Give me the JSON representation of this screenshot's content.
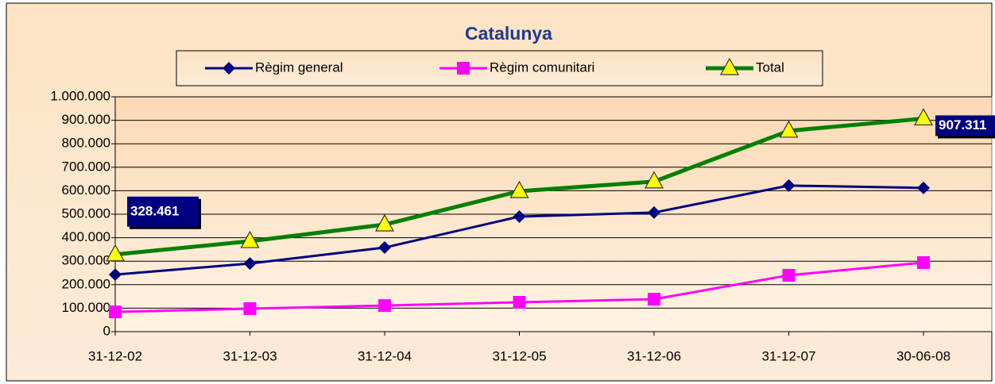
{
  "chart_data": {
    "type": "line",
    "title": "Catalunya",
    "categories": [
      "31-12-02",
      "31-12-03",
      "31-12-04",
      "31-12-05",
      "31-12-06",
      "31-12-07",
      "30-06-08"
    ],
    "series": [
      {
        "name": "Règim general",
        "color": "#000080",
        "marker": "diamond",
        "values": [
          243000,
          290000,
          358000,
          490000,
          507000,
          622000,
          612000
        ]
      },
      {
        "name": "Règim comunitari",
        "color": "#ff00ff",
        "marker": "square",
        "values": [
          84000,
          98000,
          111000,
          125000,
          138000,
          240000,
          294000
        ]
      },
      {
        "name": "Total",
        "color": "#008000",
        "marker": "triangle",
        "values": [
          328461,
          385000,
          456000,
          598000,
          639000,
          855000,
          907311
        ],
        "value_labels": [
          "328.461",
          null,
          null,
          null,
          null,
          null,
          "907.311"
        ]
      }
    ],
    "ylim": [
      0,
      1000000
    ],
    "yticks": [
      0,
      {
        "value": 100000,
        "label": "100.000"
      },
      {
        "value": 200000,
        "label": "200.000"
      },
      {
        "value": 300000,
        "label": "300.000"
      },
      {
        "value": 400000,
        "label": "400.000"
      },
      {
        "value": 500000,
        "label": "500.000"
      },
      {
        "value": 600000,
        "label": "600.000"
      },
      {
        "value": 700000,
        "label": "700.000"
      },
      {
        "value": 800000,
        "label": "800.000"
      },
      {
        "value": 900000,
        "label": "900.000"
      },
      {
        "value": 1000000,
        "label": "1.000.000"
      }
    ],
    "grid": true,
    "legend": "top"
  }
}
